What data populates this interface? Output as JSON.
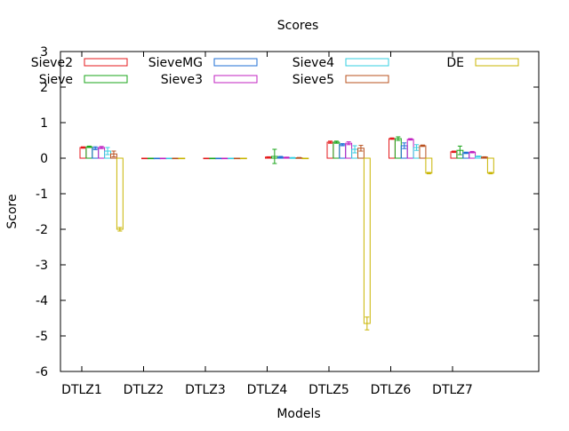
{
  "chart_data": {
    "type": "bar",
    "title": "Scores",
    "xlabel": "Models",
    "ylabel": "Score",
    "ylim": [
      -6,
      3
    ],
    "yticks": [
      -6,
      -5,
      -4,
      -3,
      -2,
      -1,
      0,
      1,
      2,
      3
    ],
    "grid": false,
    "legend_position": "top",
    "categories": [
      "DTLZ1",
      "DTLZ2",
      "DTLZ3",
      "DTLZ4",
      "DTLZ5",
      "DTLZ6",
      "DTLZ7"
    ],
    "series": [
      {
        "name": "Sieve2",
        "color": "#e41a1c",
        "values": [
          0.3,
          0.0,
          0.0,
          0.03,
          0.45,
          0.55,
          0.18
        ],
        "err": [
          0.02,
          0.0,
          0.0,
          0.01,
          0.03,
          0.02,
          0.02
        ]
      },
      {
        "name": "Sieve",
        "color": "#1aa51a",
        "values": [
          0.32,
          0.0,
          0.0,
          0.05,
          0.45,
          0.55,
          0.22
        ],
        "err": [
          0.02,
          0.0,
          0.0,
          0.2,
          0.03,
          0.05,
          0.12
        ]
      },
      {
        "name": "SieveMG",
        "color": "#1f6fd6",
        "values": [
          0.28,
          0.0,
          0.0,
          0.03,
          0.38,
          0.35,
          0.15
        ],
        "err": [
          0.04,
          0.0,
          0.0,
          0.02,
          0.03,
          0.08,
          0.02
        ]
      },
      {
        "name": "Sieve3",
        "color": "#c020c0",
        "values": [
          0.3,
          0.0,
          0.0,
          0.02,
          0.42,
          0.53,
          0.17
        ],
        "err": [
          0.03,
          0.0,
          0.0,
          0.01,
          0.04,
          0.02,
          0.02
        ]
      },
      {
        "name": "Sieve4",
        "color": "#33cfe0",
        "values": [
          0.2,
          0.0,
          0.0,
          0.01,
          0.25,
          0.3,
          0.05
        ],
        "err": [
          0.1,
          0.0,
          0.0,
          0.01,
          0.1,
          0.08,
          0.01
        ]
      },
      {
        "name": "Sieve5",
        "color": "#b8501e",
        "values": [
          0.12,
          0.0,
          0.0,
          0.01,
          0.28,
          0.35,
          0.03
        ],
        "err": [
          0.08,
          0.0,
          0.0,
          0.01,
          0.08,
          0.02,
          0.01
        ]
      },
      {
        "name": "DE",
        "color": "#c8b400",
        "values": [
          -2.0,
          0.0,
          0.0,
          0.0,
          -4.65,
          -0.42,
          -0.42
        ],
        "err": [
          0.05,
          0.0,
          0.0,
          0.0,
          0.18,
          0.02,
          0.02
        ]
      }
    ]
  }
}
